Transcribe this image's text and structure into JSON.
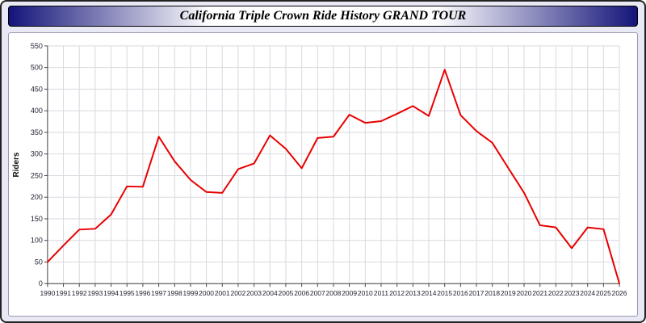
{
  "title": "California Triple Crown Ride History GRAND TOUR",
  "colors": {
    "line": "#e80000",
    "titlebar_navy": "#14147a",
    "page_background": "#e9e9f6",
    "plot_background": "#ffffff",
    "grid": "#d9d9e0",
    "axis": "#444444",
    "tick_text": "#222233"
  },
  "chart_data": {
    "type": "line",
    "title": "California Triple Crown Ride History GRAND TOUR",
    "xlabel": "",
    "ylabel": "Riders",
    "ylim": [
      0,
      550
    ],
    "ytick_step": 50,
    "grid": true,
    "legend_position": "none",
    "x": [
      1990,
      1991,
      1992,
      1993,
      1994,
      1995,
      1996,
      1997,
      1998,
      1999,
      2000,
      2001,
      2002,
      2003,
      2004,
      2005,
      2006,
      2007,
      2008,
      2009,
      2010,
      2011,
      2012,
      2013,
      2014,
      2015,
      2016,
      2017,
      2018,
      2019,
      2020,
      2021,
      2022,
      2023,
      2024,
      2025,
      2026
    ],
    "series": [
      {
        "name": "Riders",
        "color": "#e80000",
        "values": [
          50,
          88,
          125,
          127,
          160,
          225,
          224,
          340,
          283,
          240,
          212,
          210,
          265,
          278,
          343,
          312,
          267,
          337,
          340,
          391,
          372,
          376,
          393,
          411,
          388,
          495,
          390,
          353,
          326,
          268,
          210,
          135,
          130,
          82,
          130,
          126,
          0
        ]
      }
    ]
  }
}
